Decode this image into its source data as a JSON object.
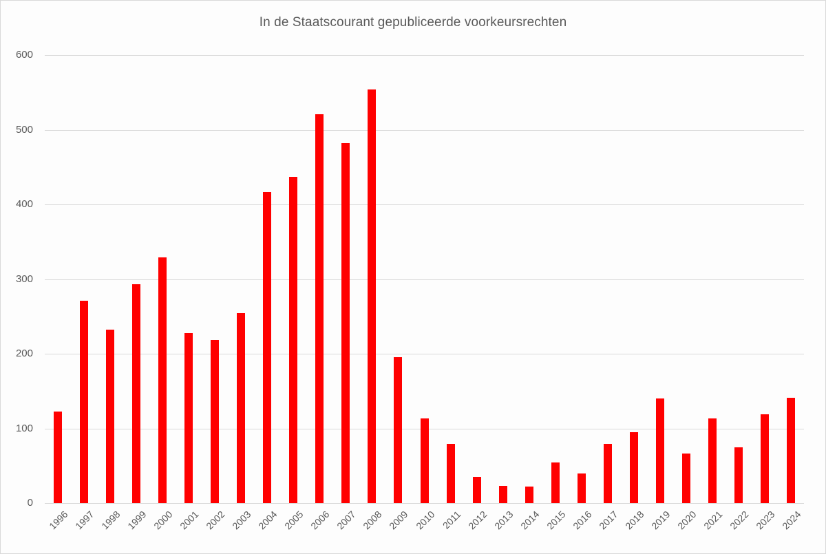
{
  "chart_data": {
    "type": "bar",
    "title": "In de Staatscourant gepubliceerde voorkeursrechten",
    "xlabel": "",
    "ylabel": "",
    "ylim": [
      0,
      600
    ],
    "yticks": [
      0,
      100,
      200,
      300,
      400,
      500,
      600
    ],
    "grid": true,
    "legend": null,
    "bar_color": "#ff0000",
    "categories": [
      "1996",
      "1997",
      "1998",
      "1999",
      "2000",
      "2001",
      "2002",
      "2003",
      "2004",
      "2005",
      "2006",
      "2007",
      "2008",
      "2009",
      "2010",
      "2011",
      "2012",
      "2013",
      "2014",
      "2015",
      "2016",
      "2017",
      "2018",
      "2019",
      "2020",
      "2021",
      "2022",
      "2023",
      "2024"
    ],
    "values": [
      123,
      271,
      232,
      293,
      329,
      228,
      218,
      254,
      417,
      437,
      521,
      482,
      554,
      195,
      113,
      79,
      35,
      23,
      22,
      54,
      40,
      79,
      95,
      140,
      66,
      113,
      75,
      119,
      141
    ]
  }
}
